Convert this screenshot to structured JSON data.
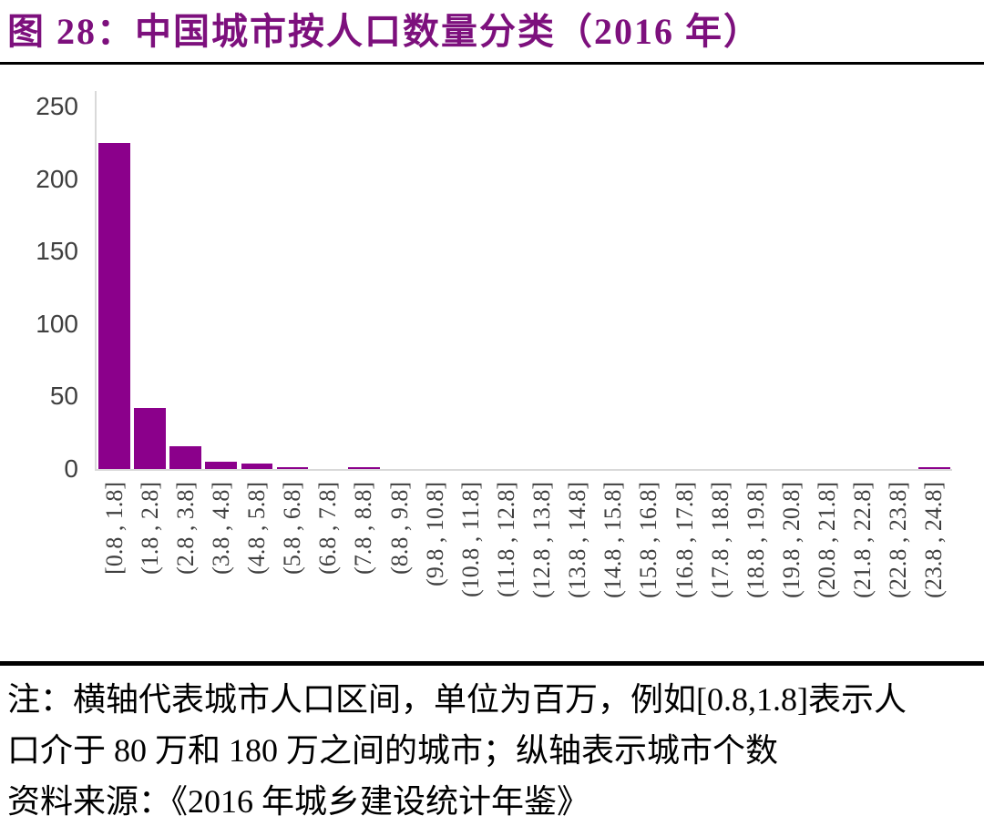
{
  "title": {
    "text": "图 28：中国城市按人口数量分类（2016 年）"
  },
  "chart_data": {
    "type": "bar",
    "title": "中国城市按人口数量分类（2016 年）",
    "categories": [
      "[0.8 , 1.8]",
      "(1.8 , 2.8]",
      "(2.8 , 3.8]",
      "(3.8 , 4.8]",
      "(4.8 , 5.8]",
      "(5.8 , 6.8]",
      "(6.8 , 7.8]",
      "(7.8 , 8.8]",
      "(8.8 , 9.8]",
      "(9.8 , 10.8]",
      "(10.8 , 11.8]",
      "(11.8 , 12.8]",
      "(12.8 , 13.8]",
      "(13.8 , 14.8]",
      "(14.8 , 15.8]",
      "(15.8 , 16.8]",
      "(16.8 , 17.8]",
      "(17.8 , 18.8]",
      "(18.8 , 19.8]",
      "(19.8 , 20.8]",
      "(20.8 , 21.8]",
      "(21.8 , 22.8]",
      "(22.8 , 23.8]",
      "(23.8 , 24.8]"
    ],
    "values": [
      225,
      42,
      16,
      5,
      4,
      1,
      0,
      1,
      0,
      0,
      0,
      0,
      0,
      0,
      0,
      0,
      0,
      0,
      0,
      0,
      0,
      0,
      0,
      1
    ],
    "xlabel": "",
    "ylabel": "",
    "ylim": [
      0,
      250
    ],
    "yticks": [
      0,
      50,
      100,
      150,
      200,
      250
    ],
    "grid": false,
    "legend": false,
    "bar_color": "#8B008B",
    "axis_color": "#D9D9D9",
    "tick_label_color": "#3F3F3F"
  },
  "notes": {
    "line1": "注：横轴代表城市人口区间，单位为百万，例如[0.8,1.8]表示人",
    "line2": "口介于 80 万和 180 万之间的城市；纵轴表示城市个数",
    "line3": "资料来源：《2016 年城乡建设统计年鉴》"
  },
  "colors": {
    "title": "#7D107D",
    "divider": "#000000"
  }
}
